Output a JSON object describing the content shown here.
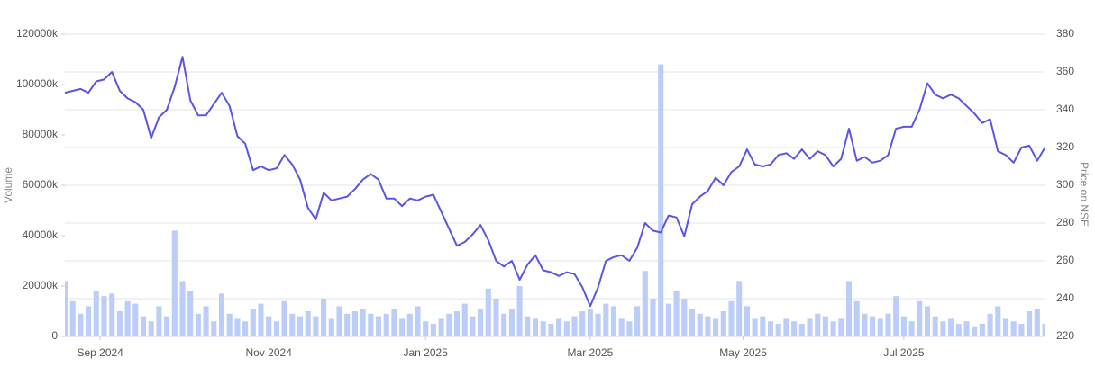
{
  "chart_data": {
    "type": "combo",
    "y_label": "Volume",
    "y2_label": "Price on NSE",
    "grid": true,
    "xlim": [
      0,
      125
    ],
    "xticks": [
      {
        "value": 4.5,
        "label": "Sep 2024"
      },
      {
        "value": 26,
        "label": "Nov 2024"
      },
      {
        "value": 46,
        "label": "Jan 2025"
      },
      {
        "value": 67,
        "label": "Mar 2025"
      },
      {
        "value": 86.5,
        "label": "May 2025"
      },
      {
        "value": 107,
        "label": "Jul 2025"
      }
    ],
    "ylim": [
      0,
      120000
    ],
    "yticks": [
      0,
      {
        "value": 20000,
        "label": "20000k"
      },
      {
        "value": 40000,
        "label": "40000k"
      },
      {
        "value": 60000,
        "label": "60000k"
      },
      {
        "value": 80000,
        "label": "80000k"
      },
      {
        "value": 100000,
        "label": "100000k"
      },
      {
        "value": 120000,
        "label": "120000k"
      }
    ],
    "y2lim": [
      220,
      380
    ],
    "y2ticks": [
      220,
      240,
      260,
      280,
      300,
      320,
      340,
      360,
      380
    ],
    "series": [
      {
        "type": "bar",
        "color": "#bccdf7",
        "values": [
          22000,
          14000,
          9000,
          12000,
          18000,
          16000,
          17000,
          10000,
          14000,
          13000,
          8000,
          6000,
          12000,
          8000,
          42000,
          22000,
          18000,
          9000,
          12000,
          6000,
          17000,
          9000,
          7000,
          6000,
          11000,
          13000,
          8000,
          6000,
          14000,
          9000,
          8000,
          10000,
          8000,
          15000,
          7000,
          12000,
          9000,
          10000,
          11000,
          9000,
          8000,
          9000,
          11000,
          7000,
          9000,
          12000,
          6000,
          5000,
          7000,
          9000,
          10000,
          13000,
          8000,
          11000,
          19000,
          15000,
          9000,
          11000,
          20000,
          8000,
          7000,
          6000,
          5000,
          7000,
          6000,
          8000,
          10000,
          11000,
          9000,
          13000,
          12000,
          7000,
          6000,
          12000,
          26000,
          15000,
          108000,
          13000,
          18000,
          15000,
          11000,
          9000,
          8000,
          7000,
          10000,
          14000,
          22000,
          12000,
          7000,
          8000,
          6000,
          5000,
          7000,
          6000,
          5000,
          7000,
          9000,
          8000,
          6000,
          7000,
          22000,
          14000,
          9000,
          8000,
          7000,
          9000,
          16000,
          8000,
          6000,
          14000,
          12000,
          8000,
          6000,
          7000,
          5000,
          6000,
          4000,
          5000,
          9000,
          12000,
          7000,
          6000,
          5000,
          10000,
          11000,
          5000
        ]
      },
      {
        "type": "line",
        "axis": "y2",
        "color": "#5b55e3",
        "values": [
          349,
          350,
          351,
          349,
          355,
          356,
          360,
          350,
          346,
          344,
          340,
          325,
          336,
          340,
          352,
          368,
          345,
          337,
          337,
          343,
          349,
          342,
          326,
          322,
          308,
          310,
          308,
          309,
          316,
          311,
          303,
          288,
          282,
          296,
          292,
          293,
          294,
          298,
          303,
          306,
          303,
          293,
          293,
          289,
          293,
          292,
          294,
          295,
          286,
          277,
          268,
          270,
          274,
          279,
          271,
          260,
          257,
          260,
          250,
          258,
          263,
          255,
          254,
          252,
          254,
          253,
          246,
          236,
          246,
          260,
          262,
          263,
          260,
          267,
          280,
          276,
          275,
          284,
          283,
          273,
          290,
          294,
          297,
          304,
          300,
          307,
          310,
          319,
          311,
          310,
          311,
          316,
          317,
          314,
          319,
          314,
          318,
          316,
          310,
          314,
          330,
          313,
          315,
          312,
          313,
          316,
          330,
          331,
          331,
          340,
          354,
          348,
          346,
          348,
          346,
          342,
          338,
          333,
          335,
          318,
          316,
          312,
          320,
          321,
          313,
          320
        ]
      }
    ]
  }
}
